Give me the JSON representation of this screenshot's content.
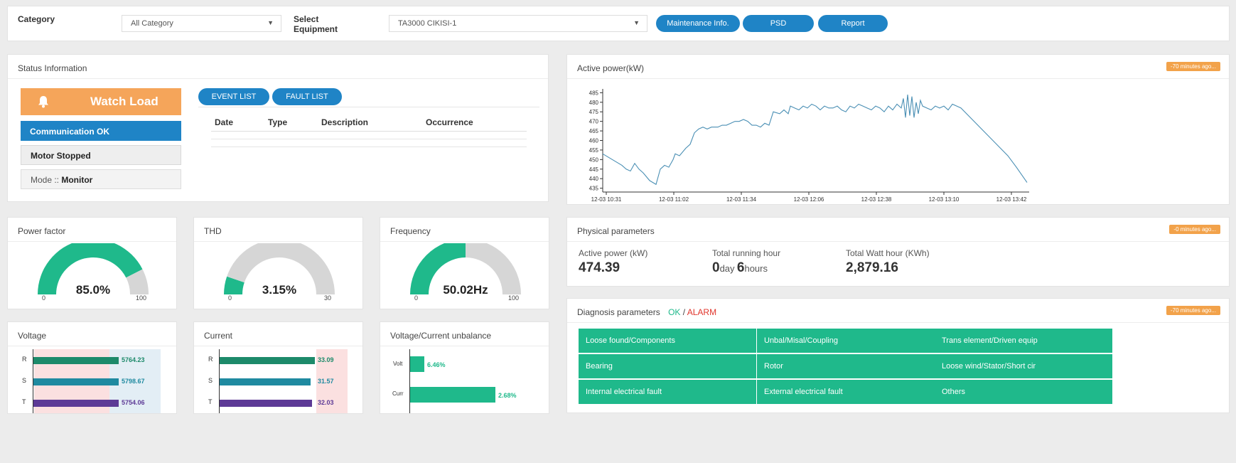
{
  "top": {
    "category_label": "Category",
    "category_value": "All Category",
    "equipment_label_1": "Select",
    "equipment_label_2": "Equipment",
    "equipment_value": "TA3000 CIKISI-1",
    "dropdown_arrow": "▼",
    "btn_maintenance": "Maintenance Info.",
    "btn_psd": "PSD",
    "btn_report": "Report"
  },
  "status": {
    "title": "Status Information",
    "watch": "Watch Load",
    "comm": "Communication OK",
    "motor": "Motor Stopped",
    "mode_label": "Mode :: ",
    "mode_value": "Monitor",
    "tab_event": "EVENT LIST",
    "tab_fault": "FAULT LIST",
    "columns": [
      "Date",
      "Type",
      "Description",
      "Occurrence"
    ]
  },
  "active_power": {
    "title": "Active power(kW)",
    "badge": "-70 minutes ago..."
  },
  "physical": {
    "title": "Physical parameters",
    "badge": "-0 minutes ago...",
    "active_power_label": "Active power (kW)",
    "active_power_value": "474.39",
    "running_label": "Total running hour",
    "running_days": "0",
    "running_days_unit": "day",
    "running_hours": "6",
    "running_hours_unit": "hours",
    "watt_label": "Total Watt hour (KWh)",
    "watt_value": "2,879.16"
  },
  "diagnosis": {
    "title": "Diagnosis parameters",
    "ok": "OK",
    "sep": " / ",
    "alarm": "ALARM",
    "badge": "-70 minutes ago...",
    "items": [
      "Loose found/Components",
      "Unbal/Misal/Coupling",
      "Trans element/Driven equip",
      "Bearing",
      "Rotor",
      "Loose wind/Stator/Short cir",
      "Internal electrical fault",
      "External electrical fault",
      "Others"
    ]
  },
  "gauges": {
    "power_factor": {
      "title": "Power factor",
      "value": "85.0%",
      "min": "0",
      "max": "100",
      "fraction": 0.85
    },
    "thd": {
      "title": "THD",
      "value": "3.15%",
      "min": "0",
      "max": "30",
      "fraction": 0.105
    },
    "frequency": {
      "title": "Frequency",
      "value": "50.02Hz",
      "min": "0",
      "max": "100",
      "fraction": 0.5002
    }
  },
  "bars": {
    "voltage": {
      "title": "Voltage",
      "labels": [
        "R",
        "S",
        "T"
      ],
      "values": [
        "5764.23",
        "5798.67",
        "5754.06"
      ]
    },
    "current": {
      "title": "Current",
      "labels": [
        "R",
        "S",
        "T"
      ],
      "values": [
        "33.09",
        "31.57",
        "32.03"
      ]
    },
    "unbalance": {
      "title": "Voltage/Current unbalance",
      "labels": [
        "Volt",
        "Curr"
      ],
      "values": [
        "6.46%",
        "2.68%"
      ]
    }
  },
  "chart_data": {
    "type": "line",
    "title": "Active power(kW)",
    "xlabel": "",
    "ylabel": "",
    "ylim": [
      433,
      487
    ],
    "yticks": [
      435,
      440,
      445,
      450,
      455,
      460,
      465,
      470,
      475,
      480,
      485
    ],
    "xticks": [
      "12-03 10:31",
      "12-03 11:02",
      "12-03 11:34",
      "12-03 12:06",
      "12-03 12:38",
      "12-03 13:10",
      "12-03 13:42"
    ],
    "xlim": [
      0,
      200
    ],
    "series": [
      {
        "x": [
          0,
          3,
          6,
          9,
          11,
          13,
          15,
          17,
          19,
          22,
          25,
          27,
          29,
          31,
          33,
          34,
          36,
          39,
          41,
          43,
          45,
          47,
          49,
          51,
          54,
          56,
          58,
          60,
          62,
          64,
          66,
          68,
          70,
          72,
          74,
          76,
          78,
          80,
          83,
          85,
          87,
          88,
          90,
          92,
          94,
          96,
          98,
          100,
          102,
          104,
          106,
          108,
          110,
          112,
          114,
          116,
          118,
          120,
          122,
          124,
          126,
          128,
          130,
          132,
          134,
          136,
          138,
          140,
          141,
          142,
          143,
          144,
          145,
          146,
          147,
          148,
          149,
          150,
          152,
          154,
          156,
          158,
          160,
          162,
          164,
          166,
          168,
          190,
          194,
          199
        ],
        "y": [
          453,
          451,
          449,
          447,
          445,
          444,
          448,
          445,
          443,
          439,
          437,
          445,
          447,
          446,
          450,
          453,
          452,
          456,
          458,
          464,
          466,
          467,
          466,
          467,
          467,
          468,
          468,
          469,
          470,
          470,
          471,
          470,
          468,
          468,
          467,
          469,
          468,
          475,
          474,
          476,
          474,
          478,
          477,
          476,
          478,
          477,
          479,
          478,
          476,
          478,
          477,
          477,
          478,
          476,
          475,
          478,
          477,
          479,
          478,
          477,
          476,
          478,
          477,
          475,
          478,
          476,
          479,
          477,
          482,
          472,
          484,
          473,
          483,
          472,
          480,
          474,
          481,
          478,
          477,
          476,
          478,
          477,
          478,
          476,
          479,
          478,
          477,
          452,
          446,
          438
        ]
      }
    ]
  }
}
